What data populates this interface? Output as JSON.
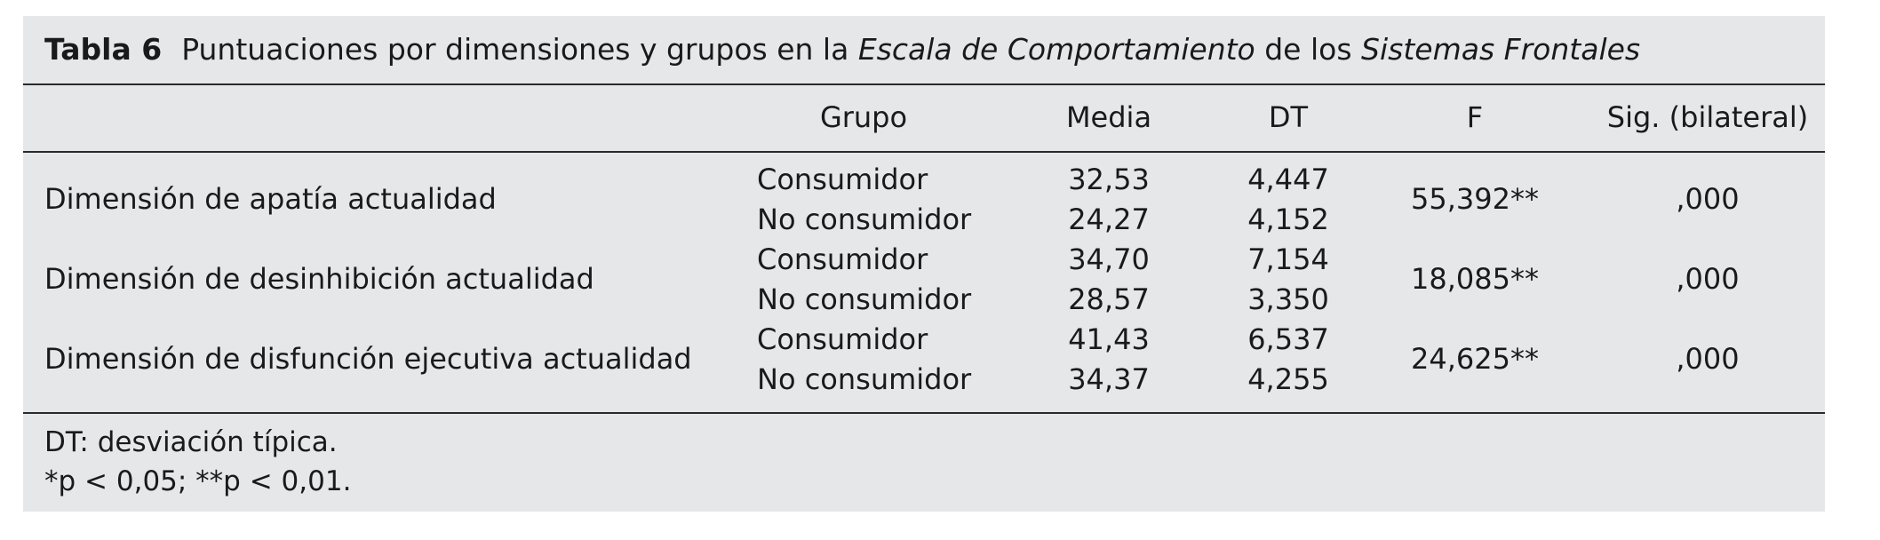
{
  "table": {
    "label": "Tabla 6",
    "caption_part1": "Puntuaciones por dimensiones y grupos en la ",
    "caption_italic1": "Escala de Comportamiento",
    "caption_part2": " de los ",
    "caption_italic2": "Sistemas Frontales",
    "headers": [
      "",
      "Grupo",
      "Media",
      "DT",
      "F",
      "Sig. (bilateral)"
    ],
    "rows": [
      {
        "dimension": "Dimensión de apatía actualidad",
        "groups": [
          "Consumidor",
          "No consumidor"
        ],
        "media": [
          "32,53",
          "24,27"
        ],
        "dt": [
          "4,447",
          "4,152"
        ],
        "f": "55,392**",
        "sig": ",000"
      },
      {
        "dimension": "Dimensión de desinhibición actualidad",
        "groups": [
          "Consumidor",
          "No consumidor"
        ],
        "media": [
          "34,70",
          "28,57"
        ],
        "dt": [
          "7,154",
          "3,350"
        ],
        "f": "18,085**",
        "sig": ",000"
      },
      {
        "dimension": "Dimensión de disfunción ejecutiva actualidad",
        "groups": [
          "Consumidor",
          "No consumidor"
        ],
        "media": [
          "41,43",
          "34,37"
        ],
        "dt": [
          "6,537",
          "4,255"
        ],
        "f": "24,625**",
        "sig": ",000"
      }
    ],
    "notes": [
      "DT: desviación típica.",
      "*p < 0,05; **p < 0,01."
    ]
  }
}
